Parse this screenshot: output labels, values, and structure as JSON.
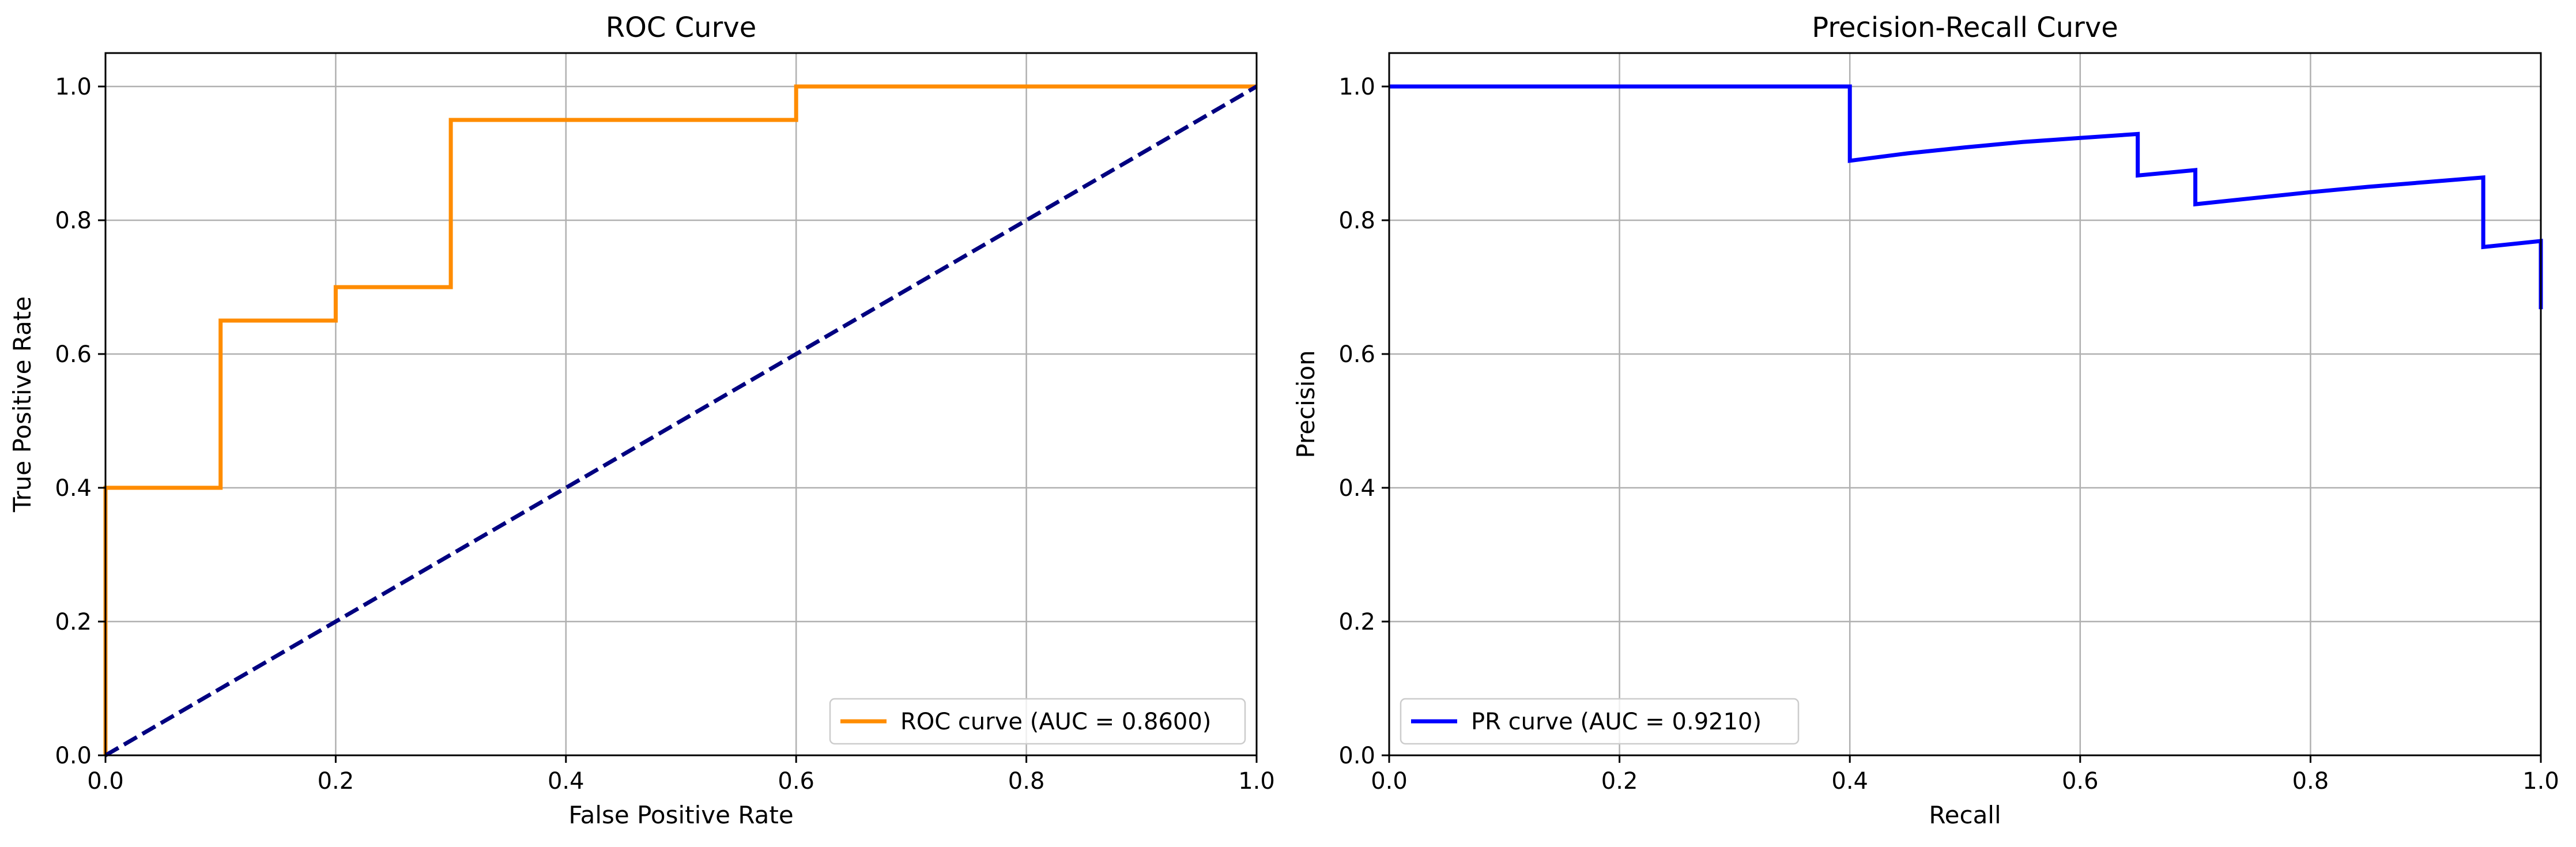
{
  "chart_data": [
    {
      "type": "line",
      "title": "ROC Curve",
      "xlabel": "False Positive Rate",
      "ylabel": "True Positive Rate",
      "xlim": [
        0.0,
        1.0
      ],
      "ylim": [
        0.0,
        1.05
      ],
      "xticks": [
        "0.0",
        "0.2",
        "0.4",
        "0.6",
        "0.8",
        "1.0"
      ],
      "yticks": [
        "0.0",
        "0.2",
        "0.4",
        "0.6",
        "0.8",
        "1.0"
      ],
      "grid": true,
      "legend_position": "lower right",
      "series": [
        {
          "name": "ROC curve (AUC = 0.8600)",
          "color": "#ff8c00",
          "style": "solid",
          "x": [
            0.0,
            0.0,
            0.1,
            0.1,
            0.2,
            0.2,
            0.3,
            0.3,
            0.6,
            0.6,
            1.0
          ],
          "y": [
            0.0,
            0.4,
            0.4,
            0.65,
            0.65,
            0.7,
            0.7,
            0.95,
            0.95,
            1.0,
            1.0
          ]
        },
        {
          "color": "#000080",
          "style": "dashed",
          "x": [
            0.0,
            1.0
          ],
          "y": [
            0.0,
            1.0
          ]
        }
      ]
    },
    {
      "type": "line",
      "title": "Precision-Recall Curve",
      "xlabel": "Recall",
      "ylabel": "Precision",
      "xlim": [
        0.0,
        1.0
      ],
      "ylim": [
        0.0,
        1.05
      ],
      "xticks": [
        "0.0",
        "0.2",
        "0.4",
        "0.6",
        "0.8",
        "1.0"
      ],
      "yticks": [
        "0.0",
        "0.2",
        "0.4",
        "0.6",
        "0.8",
        "1.0"
      ],
      "grid": true,
      "legend_position": "lower left",
      "series": [
        {
          "name": "PR curve (AUC = 0.9210)",
          "color": "#0000ff",
          "style": "solid",
          "x": [
            0.0,
            0.4,
            0.4,
            0.45,
            0.5,
            0.55,
            0.6,
            0.65,
            0.65,
            0.7,
            0.7,
            0.75,
            0.8,
            0.85,
            0.9,
            0.95,
            0.95,
            1.0,
            1.0
          ],
          "y": [
            1.0,
            1.0,
            0.889,
            0.9,
            0.909,
            0.917,
            0.923,
            0.929,
            0.867,
            0.875,
            0.824,
            0.833,
            0.842,
            0.85,
            0.857,
            0.864,
            0.76,
            0.769,
            0.667
          ]
        }
      ]
    }
  ]
}
